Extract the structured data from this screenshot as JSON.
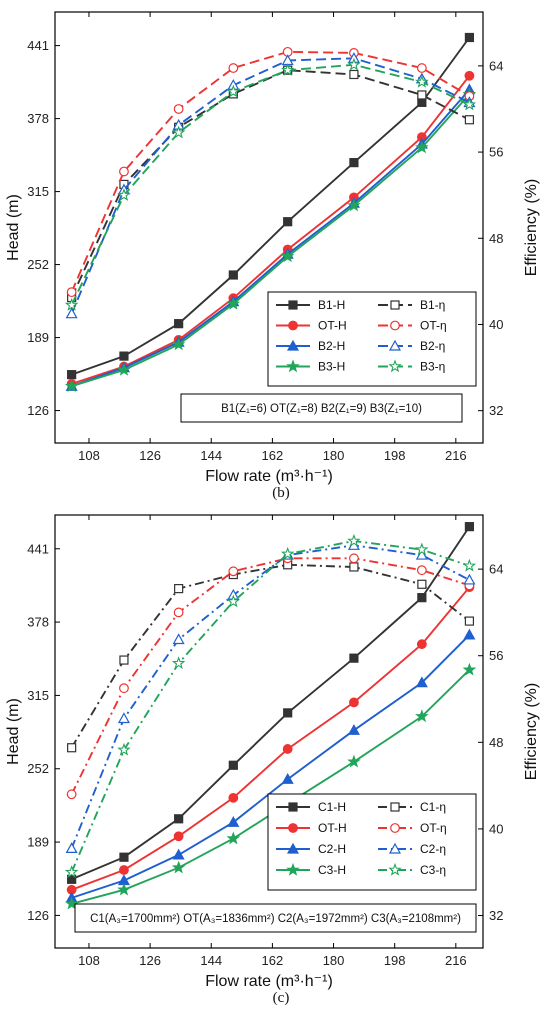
{
  "chart_data": [
    {
      "type": "line",
      "caption": "(b)",
      "xlabel": "Flow rate (m³·h⁻¹)",
      "ylabel": "Head (m)",
      "y2label": "Efficiency (%)",
      "x_ticks": [
        "108",
        "126",
        "144",
        "162",
        "180",
        "198",
        "216"
      ],
      "y_ticks": [
        "126",
        "189",
        "252",
        "315",
        "378",
        "441"
      ],
      "y2_ticks": [
        "32",
        "40",
        "48",
        "56",
        "64"
      ],
      "xlim": [
        98,
        224
      ],
      "ylim": [
        98,
        470
      ],
      "y2lim": [
        29,
        69
      ],
      "x": [
        102.9,
        118.3,
        134.4,
        150.5,
        166.5,
        186.0,
        206.0,
        220.0
      ],
      "note": "B1(Z₁=6)  OT(Z₁=8)  B2(Z₁=9)  B3(Z₁=10)",
      "legend_position": "center-right",
      "series": [
        {
          "name": "B1-H",
          "axis": "left",
          "color": "#333333",
          "marker": "square",
          "filled": true,
          "dash": "solid",
          "values": [
            157,
            173,
            201,
            243,
            289,
            340,
            392,
            448
          ]
        },
        {
          "name": "OT-H",
          "axis": "left",
          "color": "#ee3333",
          "marker": "circle",
          "filled": true,
          "dash": "solid",
          "values": [
            149,
            164,
            187,
            223,
            265,
            310,
            362,
            415
          ]
        },
        {
          "name": "B2-H",
          "axis": "left",
          "color": "#1f5fd0",
          "marker": "triangle",
          "filled": true,
          "dash": "solid",
          "values": [
            147,
            163,
            185,
            220,
            261,
            305,
            356,
            403
          ]
        },
        {
          "name": "B3-H",
          "axis": "left",
          "color": "#22a55a",
          "marker": "star",
          "filled": true,
          "dash": "solid",
          "values": [
            147,
            161,
            183,
            218,
            259,
            303,
            353,
            399
          ]
        },
        {
          "name": "B1-η",
          "axis": "right",
          "color": "#333333",
          "marker": "square",
          "filled": false,
          "dash": "longdash",
          "values": [
            42.5,
            53.0,
            58.3,
            61.4,
            63.6,
            63.2,
            61.3,
            59.0
          ]
        },
        {
          "name": "OT-η",
          "axis": "right",
          "color": "#ee3333",
          "marker": "circle",
          "filled": false,
          "dash": "longdash",
          "values": [
            43.0,
            54.2,
            60.0,
            63.8,
            65.3,
            65.2,
            63.8,
            61.2
          ]
        },
        {
          "name": "B2-η",
          "axis": "right",
          "color": "#1f5fd0",
          "marker": "triangle",
          "filled": false,
          "dash": "longdash",
          "values": [
            41.0,
            52.5,
            58.5,
            62.2,
            64.5,
            64.7,
            62.8,
            60.6
          ]
        },
        {
          "name": "B3-η",
          "axis": "right",
          "color": "#22a55a",
          "marker": "star",
          "filled": false,
          "dash": "longdash",
          "values": [
            41.8,
            52.0,
            57.8,
            61.6,
            63.6,
            64.1,
            62.5,
            60.4
          ]
        }
      ]
    },
    {
      "type": "line",
      "caption": "(c)",
      "xlabel": "Flow rate (m³·h⁻¹)",
      "ylabel": "Head (m)",
      "y2label": "Efficiency (%)",
      "x_ticks": [
        "108",
        "126",
        "144",
        "162",
        "180",
        "198",
        "216"
      ],
      "y_ticks": [
        "126",
        "189",
        "252",
        "315",
        "378",
        "441"
      ],
      "y2_ticks": [
        "32",
        "40",
        "48",
        "56",
        "64"
      ],
      "xlim": [
        98,
        224
      ],
      "ylim": [
        98,
        470
      ],
      "y2lim": [
        29,
        69
      ],
      "x": [
        102.9,
        118.3,
        134.4,
        150.5,
        166.5,
        186.0,
        206.0,
        220.0
      ],
      "note": "C1(A₃=1700mm²)  OT(A₃=1836mm²)  C2(A₃=1972mm²)  C3(A₃=2108mm²)",
      "legend_position": "center-right",
      "series": [
        {
          "name": "C1-H",
          "axis": "left",
          "color": "#333333",
          "marker": "square",
          "filled": true,
          "dash": "solid",
          "values": [
            157,
            176,
            209,
            255,
            300,
            347,
            399,
            460
          ]
        },
        {
          "name": "OT-H",
          "axis": "left",
          "color": "#ee3333",
          "marker": "circle",
          "filled": true,
          "dash": "solid",
          "values": [
            148,
            165,
            194,
            227,
            269,
            309,
            359,
            408
          ]
        },
        {
          "name": "C2-H",
          "axis": "left",
          "color": "#1f5fd0",
          "marker": "triangle",
          "filled": true,
          "dash": "solid",
          "values": [
            141,
            156,
            178,
            206,
            243,
            285,
            326,
            367
          ]
        },
        {
          "name": "C3-H",
          "axis": "left",
          "color": "#22a55a",
          "marker": "star",
          "filled": true,
          "dash": "solid",
          "values": [
            136,
            148,
            167,
            192,
            222,
            258,
            297,
            337
          ]
        },
        {
          "name": "C1-η",
          "axis": "right",
          "color": "#333333",
          "marker": "square",
          "filled": false,
          "dash": "dashdot",
          "values": [
            47.5,
            55.6,
            62.2,
            63.5,
            64.4,
            64.2,
            62.6,
            59.2
          ]
        },
        {
          "name": "OT-η",
          "axis": "right",
          "color": "#ee3333",
          "marker": "circle",
          "filled": false,
          "dash": "dashdot",
          "values": [
            43.2,
            53.0,
            60.0,
            63.8,
            65.0,
            65.0,
            63.9,
            62.5
          ]
        },
        {
          "name": "C2-η",
          "axis": "right",
          "color": "#1f5fd0",
          "marker": "triangle",
          "filled": false,
          "dash": "dashdot",
          "values": [
            38.2,
            50.2,
            57.5,
            61.6,
            65.3,
            66.2,
            65.3,
            63.0
          ]
        },
        {
          "name": "C3-η",
          "axis": "right",
          "color": "#22a55a",
          "marker": "star",
          "filled": false,
          "dash": "dashdot",
          "values": [
            36.0,
            47.3,
            55.3,
            61.0,
            65.4,
            66.6,
            65.8,
            64.3
          ]
        }
      ]
    }
  ]
}
